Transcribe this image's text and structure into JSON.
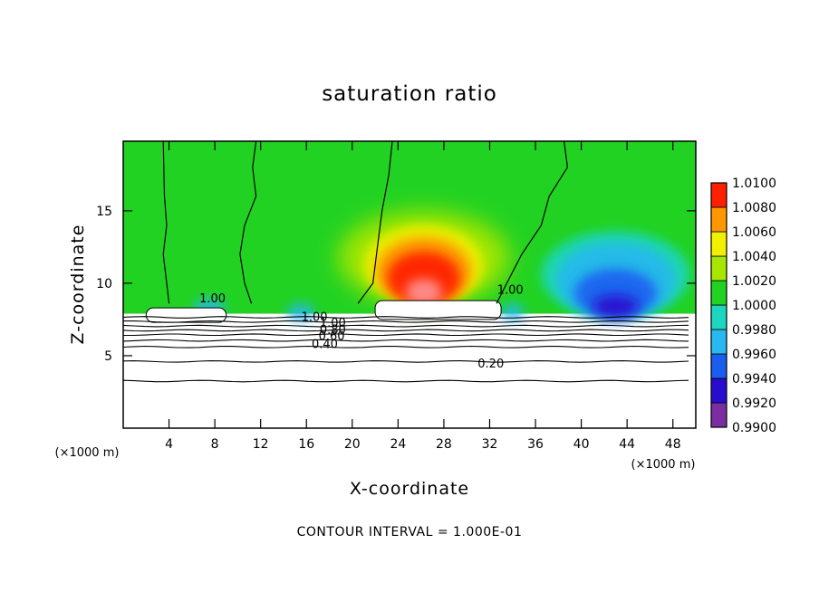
{
  "chart_data": {
    "type": "heatmap",
    "title": "saturation ratio",
    "xlabel": "X-coordinate",
    "ylabel": "Z-coordinate",
    "x_unit_label": "(×1000 m)",
    "y_unit_label": "(×1000 m)",
    "xlim": [
      0,
      50
    ],
    "ylim": [
      0,
      19.8
    ],
    "x_ticks": [
      4,
      8,
      12,
      16,
      20,
      24,
      28,
      32,
      36,
      40,
      44,
      48
    ],
    "y_ticks": [
      5,
      10,
      15
    ],
    "colorbar": {
      "levels": [
        "0.9900",
        "0.9920",
        "0.9940",
        "0.9960",
        "0.9980",
        "1.0000",
        "1.0020",
        "1.0040",
        "1.0060",
        "1.0080",
        "1.0100"
      ],
      "colors": [
        "#7a2fa0",
        "#2a0ccf",
        "#1a5ef0",
        "#28b8f0",
        "#1ed6c0",
        "#22d222",
        "#a6e600",
        "#f0f000",
        "#ff9800",
        "#ff2000",
        "#ff8f8f"
      ]
    },
    "contour_lines": {
      "interval": 0.1,
      "labels": [
        "1.00",
        "1.00",
        "1.00",
        "1.00",
        "0.80",
        "0.60",
        "0.40",
        "0.20"
      ],
      "line_heights_km": [
        7.65,
        7.35,
        7.05,
        6.75,
        6.45,
        6.05,
        5.6,
        4.6,
        3.25
      ]
    },
    "regions": [
      {
        "name": "background",
        "value": 1.0002,
        "color": "#22d222"
      },
      {
        "name": "supersaturated-core",
        "x": [
          22.5,
          30
        ],
        "z": [
          8.5,
          13.8
        ],
        "max": 1.0085
      },
      {
        "name": "subsaturated-right",
        "x": [
          37.5,
          48.5
        ],
        "z": [
          7.6,
          12.8
        ],
        "min": 0.9925
      },
      {
        "name": "cloud-top-left",
        "x": [
          2,
          9
        ],
        "z": [
          7.3,
          8.3
        ],
        "color": "#ffffff"
      },
      {
        "name": "cloud-top-center",
        "x": [
          22,
          33
        ],
        "z": [
          7.5,
          8.8
        ],
        "color": "#ffffff"
      }
    ]
  },
  "footer": {
    "contour_interval_text": "CONTOUR INTERVAL = 1.000E-01"
  }
}
